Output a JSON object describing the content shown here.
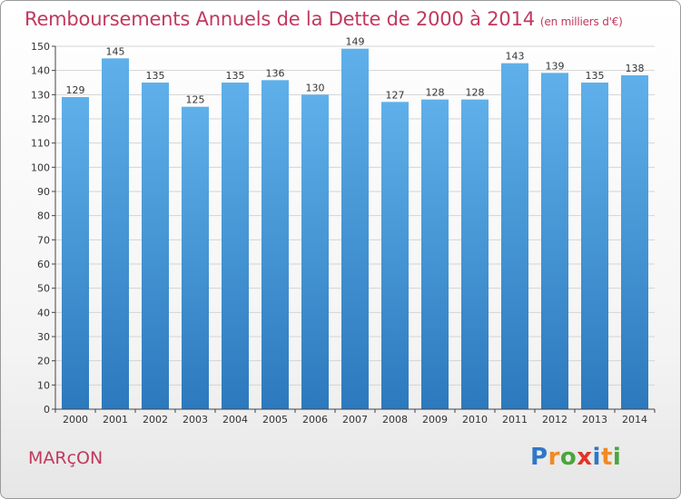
{
  "title": "Remboursements Annuels de la Dette de 2000 à 2014",
  "unit_label": "(en milliers d'€)",
  "location": "MARçON",
  "brand": {
    "letters": [
      "P",
      "r",
      "o",
      "x",
      "i",
      "t",
      "i"
    ],
    "colors": [
      "#2e77c8",
      "#f08a24",
      "#4aa63b",
      "#e2332a",
      "#2e77c8",
      "#f08a24",
      "#4aa63b"
    ]
  },
  "colors": {
    "title": "#c0395e",
    "bar_top": "#5fb0ea",
    "bar_bottom": "#2c79bd",
    "grid": "#d4d4d4"
  },
  "chart_data": {
    "type": "bar",
    "title": "Remboursements Annuels de la Dette de 2000 à 2014",
    "xlabel": "",
    "ylabel": "",
    "categories": [
      "2000",
      "2001",
      "2002",
      "2003",
      "2004",
      "2005",
      "2006",
      "2007",
      "2008",
      "2009",
      "2010",
      "2011",
      "2012",
      "2013",
      "2014"
    ],
    "values": [
      129,
      145,
      135,
      125,
      135,
      136,
      130,
      149,
      127,
      128,
      128,
      143,
      139,
      135,
      138
    ],
    "ylim": [
      0,
      150
    ],
    "yticks": [
      0,
      10,
      20,
      30,
      40,
      50,
      60,
      70,
      80,
      90,
      100,
      110,
      120,
      130,
      140,
      150
    ],
    "grid": true
  }
}
